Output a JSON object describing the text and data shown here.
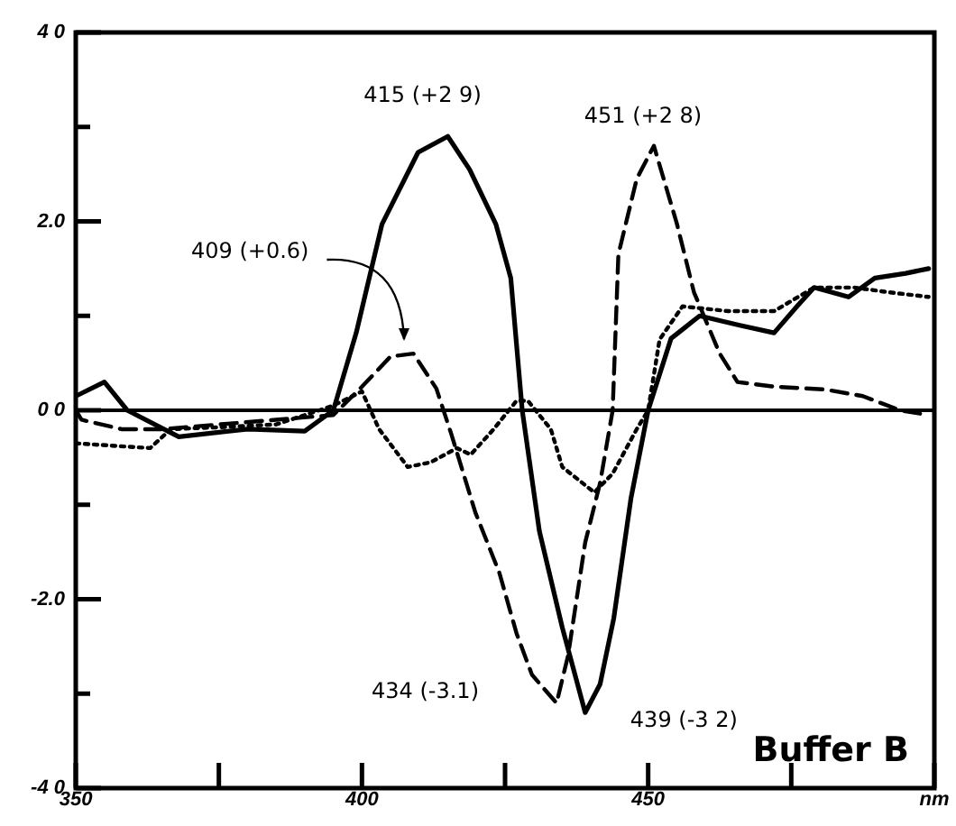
{
  "chart_data": {
    "type": "line",
    "xlim": [
      350,
      500
    ],
    "ylim": [
      -4,
      4
    ],
    "xticks": [
      350,
      {
        "value": 375,
        "label": null
      },
      400,
      {
        "value": 425,
        "label": null
      },
      450,
      {
        "value": 475,
        "label": null
      },
      {
        "value": 500,
        "label": "nm"
      }
    ],
    "yticks": [
      {
        "value": -4,
        "label": "-4 0"
      },
      {
        "value": -3,
        "label": null
      },
      {
        "value": -2,
        "label": "-2.0"
      },
      {
        "value": -1,
        "label": null
      },
      {
        "value": 0,
        "label": "0 0"
      },
      {
        "value": 1,
        "label": null
      },
      {
        "value": 2,
        "label": "2.0"
      },
      {
        "value": 3,
        "label": null
      },
      {
        "value": 4,
        "label": "4 0"
      }
    ],
    "grid": false,
    "legend": false,
    "marker": "none",
    "ref_lines": [
      {
        "axis": "y",
        "value": 0,
        "color": "#000000"
      }
    ],
    "series": [
      {
        "color": "#000000",
        "line_style": "solid",
        "x": [
          350,
          355,
          359,
          368,
          380,
          390,
          395,
          399,
          403.5,
          409.8,
          415,
          418.8,
          423.4,
          426,
          428,
          431,
          435,
          439,
          441.6,
          444,
          447,
          450,
          454,
          459,
          466,
          472,
          476,
          479,
          485,
          489.6,
          495,
          499
        ],
        "values": [
          0.15,
          0.3,
          0,
          -0.28,
          -0.2,
          -0.22,
          0,
          0.82,
          1.97,
          2.73,
          2.9,
          2.55,
          1.97,
          1.4,
          0,
          -1.28,
          -2.3,
          -3.2,
          -2.9,
          -2.2,
          -0.93,
          0,
          0.76,
          1.0,
          0.9,
          0.82,
          1.1,
          1.3,
          1.2,
          1.4,
          1.45,
          1.5
        ]
      },
      {
        "color": "#000000",
        "line_style": "dashed",
        "x": [
          350,
          351,
          358,
          365,
          375,
          385,
          395,
          400,
          405,
          409,
          413,
          415.6,
          419.8,
          424,
          427,
          429.7,
          434,
          436,
          439,
          441.6,
          443.8,
          444.8,
          448,
          451,
          455,
          458,
          462.5,
          465.6,
          472,
          481,
          487.5,
          494,
          499
        ],
        "values": [
          0,
          -0.1,
          -0.2,
          -0.2,
          -0.15,
          -0.1,
          -0.05,
          0.25,
          0.57,
          0.6,
          0.23,
          -0.25,
          -1.08,
          -1.72,
          -2.36,
          -2.8,
          -3.1,
          -2.6,
          -1.4,
          -0.77,
          0,
          1.65,
          2.45,
          2.8,
          1.98,
          1.25,
          0.6,
          0.3,
          0.25,
          0.22,
          0.15,
          0.0,
          -0.05
        ]
      },
      {
        "color": "#000000",
        "line_style": "dotted",
        "x": [
          350,
          363,
          366.6,
          375,
          385,
          395,
          400,
          403,
          408,
          412,
          416.6,
          419,
          423,
          427,
          429,
          433,
          435,
          440.6,
          443.8,
          448,
          450,
          452,
          456,
          464,
          472,
          479,
          486,
          492,
          499
        ],
        "values": [
          -0.35,
          -0.4,
          -0.2,
          -0.18,
          -0.15,
          0.05,
          0.2,
          -0.2,
          -0.6,
          -0.55,
          -0.4,
          -0.47,
          -0.2,
          0.1,
          0.1,
          -0.2,
          -0.6,
          -0.87,
          -0.67,
          -0.2,
          0,
          0.75,
          1.1,
          1.05,
          1.05,
          1.3,
          1.3,
          1.25,
          1.2
        ]
      }
    ],
    "annotations": [
      {
        "text": "415 (+2 9)",
        "x": 415,
        "y": 2.9
      },
      {
        "text": "451 (+2 8)",
        "x": 451,
        "y": 2.8
      },
      "409 (+0.6)",
      "434 (-3.1)",
      {
        "text": "439 (-3 2)",
        "x": 439,
        "y": -3.2
      },
      "Buffer B"
    ]
  }
}
